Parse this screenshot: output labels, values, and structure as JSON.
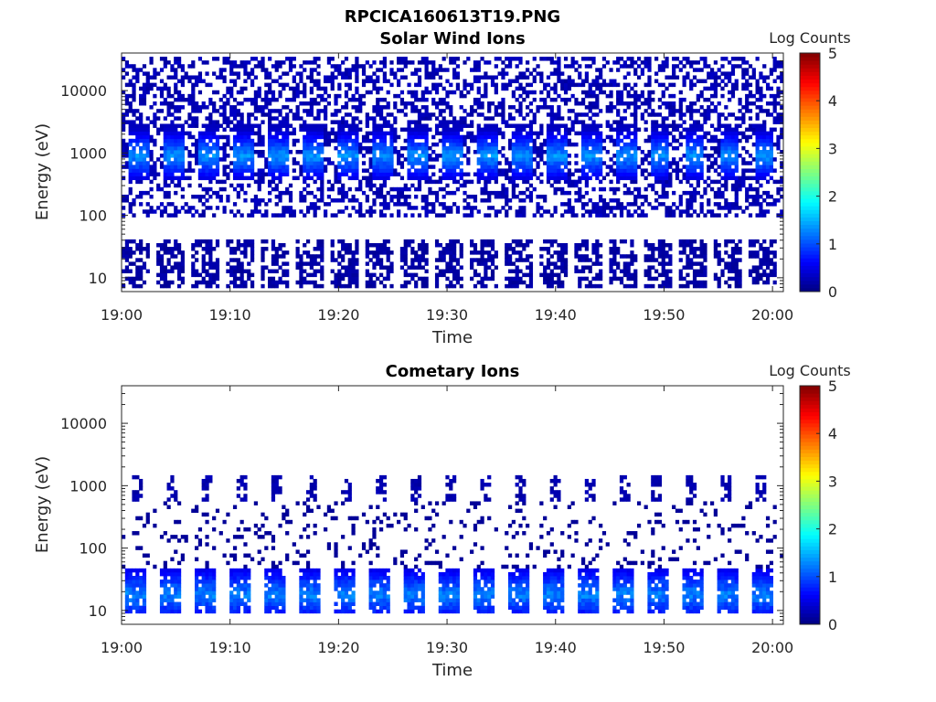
{
  "figure": {
    "title": "RPCICA160613T19.PNG"
  },
  "chart_data": [
    {
      "type": "heatmap",
      "title": "Solar Wind Ions",
      "xlabel": "Time",
      "ylabel": "Energy (eV)",
      "x_ticks": [
        "19:00",
        "19:10",
        "19:20",
        "19:30",
        "19:40",
        "19:50",
        "20:00"
      ],
      "x_range": [
        "19:00",
        "20:01"
      ],
      "y_scale": "log",
      "y_ticks": [
        "10",
        "100",
        "1000",
        "10000"
      ],
      "y_range": [
        6,
        40000
      ],
      "colorbar": {
        "label": "Log Counts",
        "range": [
          0,
          5
        ],
        "ticks": [
          "0",
          "1",
          "2",
          "3",
          "4",
          "5"
        ],
        "colormap": "jet"
      },
      "background": "#ffffff",
      "sweep_period_min": 3.2,
      "features": [
        {
          "name": "solar wind peak",
          "energy_eV": 900,
          "peak_log_counts": 1.3
        },
        {
          "name": "high energy noise",
          "energy_range_eV": [
            100,
            35000
          ],
          "log_counts": 0.2
        },
        {
          "name": "low energy bands",
          "energy_range_eV": [
            7,
            40
          ],
          "log_counts": 0.1
        }
      ]
    },
    {
      "type": "heatmap",
      "title": "Cometary Ions",
      "xlabel": "Time",
      "ylabel": "Energy (eV)",
      "x_ticks": [
        "19:00",
        "19:10",
        "19:20",
        "19:30",
        "19:40",
        "19:50",
        "20:00"
      ],
      "x_range": [
        "19:00",
        "20:01"
      ],
      "y_scale": "log",
      "y_ticks": [
        "10",
        "100",
        "1000",
        "10000"
      ],
      "y_range": [
        6,
        40000
      ],
      "colorbar": {
        "label": "Log Counts",
        "range": [
          0,
          5
        ],
        "ticks": [
          "0",
          "1",
          "2",
          "3",
          "4",
          "5"
        ],
        "colormap": "jet"
      },
      "background": "#ffffff",
      "sweep_period_min": 3.2,
      "features": [
        {
          "name": "cometary ion blobs",
          "energy_range_eV": [
            10,
            45
          ],
          "peak_log_counts": 1.4
        },
        {
          "name": "high energy blobs",
          "energy_eV": 900,
          "log_counts": 0.2
        },
        {
          "name": "sparse noise",
          "energy_range_eV": [
            50,
            600
          ],
          "log_counts": 0.1
        }
      ]
    }
  ]
}
